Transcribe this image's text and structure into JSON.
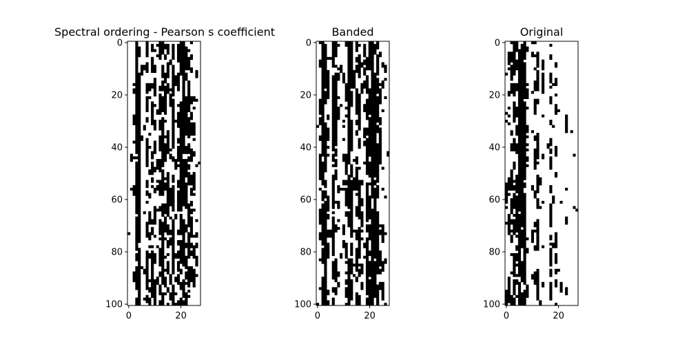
{
  "chart_data": [
    {
      "type": "heatmap",
      "title": "Spectral ordering - Pearson s coefficient",
      "rows": 101,
      "cols": 28,
      "value_range": [
        0,
        1
      ],
      "colormap": [
        "#ffffff",
        "#000000"
      ],
      "xticks": [
        0,
        20
      ],
      "yticks": [
        0,
        20,
        40,
        60,
        80,
        100
      ],
      "seed": 17,
      "col_density": [
        0.05,
        0.12,
        0.25,
        0.7,
        0.65,
        0.2,
        0.15,
        0.45,
        0.3,
        0.35,
        0.4,
        0.25,
        0.5,
        0.55,
        0.35,
        0.45,
        0.3,
        0.5,
        0.25,
        0.4,
        0.55,
        0.6,
        0.5,
        0.45,
        0.35,
        0.3,
        0.2,
        0.15
      ]
    },
    {
      "type": "heatmap",
      "title": "Banded",
      "rows": 101,
      "cols": 28,
      "value_range": [
        0,
        1
      ],
      "colormap": [
        "#ffffff",
        "#000000"
      ],
      "xticks": [
        0,
        20
      ],
      "yticks": [
        0,
        20,
        40,
        60,
        80,
        100
      ],
      "seed": 53,
      "col_density": [
        0.08,
        0.3,
        0.6,
        0.65,
        0.3,
        0.2,
        0.55,
        0.5,
        0.3,
        0.2,
        0.25,
        0.3,
        0.55,
        0.5,
        0.25,
        0.45,
        0.5,
        0.25,
        0.3,
        0.55,
        0.45,
        0.6,
        0.65,
        0.5,
        0.35,
        0.25,
        0.2,
        0.1
      ]
    },
    {
      "type": "heatmap",
      "title": "Original",
      "rows": 101,
      "cols": 28,
      "value_range": [
        0,
        1
      ],
      "colormap": [
        "#ffffff",
        "#000000"
      ],
      "xticks": [
        0,
        20
      ],
      "yticks": [
        0,
        20,
        40,
        60,
        80,
        100
      ],
      "seed": 91,
      "col_density": [
        0.25,
        0.35,
        0.4,
        0.45,
        0.35,
        0.6,
        0.65,
        0.7,
        0.35,
        0.15,
        0.25,
        0.3,
        0.45,
        0.15,
        0.2,
        0.15,
        0.1,
        0.45,
        0.2,
        0.35,
        0.15,
        0.15,
        0.1,
        0.15,
        0.05,
        0.05,
        0.05,
        0.08
      ]
    }
  ]
}
